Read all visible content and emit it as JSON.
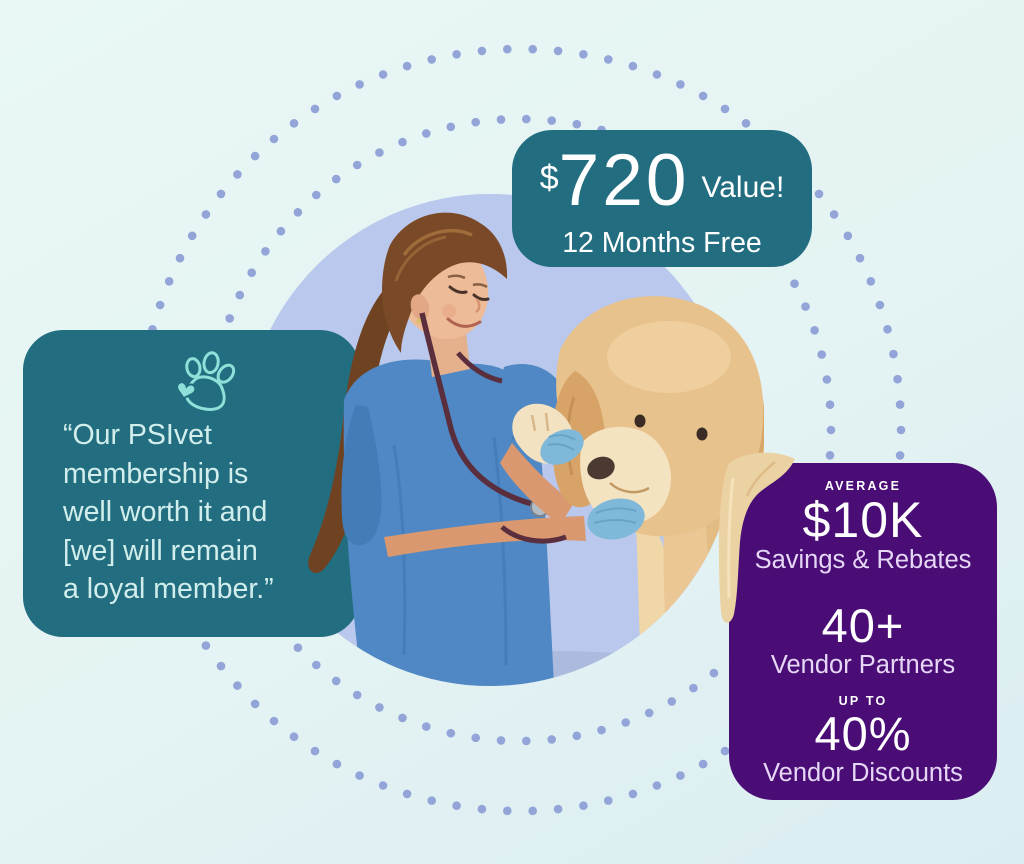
{
  "colors": {
    "background_top": "#e9f8f4",
    "background_bottom": "#dbedf2",
    "teal": "#226e80",
    "purple": "#4a0d75",
    "dot": "#92a4d8",
    "backdrop_circle": "#b9c8ec",
    "quote_text": "#d2eeec",
    "lavender_text": "#e6d7f6",
    "white": "#ffffff",
    "paw_icon": "#8fe0d8"
  },
  "value_card": {
    "currency": "$",
    "amount": "720",
    "suffix": "Value!",
    "subtitle": "12 Months Free"
  },
  "quote_card": {
    "icon": "paw-heart-icon",
    "text": "“Our PSIvet\nmembership is\nwell worth it and\n[we] will remain\na loyal member.”"
  },
  "stats_card": {
    "items": [
      {
        "kicker": "AVERAGE",
        "value": "$10K",
        "label": "Savings & Rebates"
      },
      {
        "value": "40+",
        "label": "Vendor Partners"
      },
      {
        "kicker": "UP TO",
        "value": "40%",
        "label": "Vendor Discounts"
      }
    ]
  },
  "illustration": {
    "description": "Smiling veterinarian in blue scrubs examining a golden retriever's raised paw"
  }
}
